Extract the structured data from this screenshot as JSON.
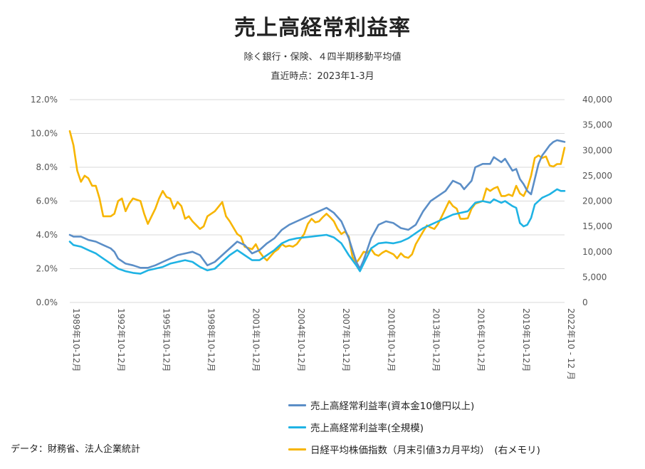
{
  "chart_data": {
    "type": "line",
    "title": "売上高経常利益率",
    "subtitle": "除く銀行・保険、４四半期移動平均値",
    "subtitle2": "直近時点：2023年1-3月",
    "x_tick_labels": [
      "1989年10-12月",
      "1992年10-12月",
      "1995年10-12月",
      "1998年10-12月",
      "2001年10-12月",
      "2004年10-12月",
      "2007年10-12月",
      "2010年10-12月",
      "2013年10-12月",
      "2016年10-12月",
      "2019年10-12月",
      "2022年10 - 12 月"
    ],
    "x_start": 1989.75,
    "x_end": 2023.0,
    "y_left": {
      "ticks": [
        "0.0%",
        "2.0%",
        "4.0%",
        "6.0%",
        "8.0%",
        "10.0%",
        "12.0%"
      ],
      "ylim": [
        0,
        12
      ]
    },
    "y_right": {
      "ticks": [
        "0",
        "5,000",
        "10,000",
        "15,000",
        "20,000",
        "25,000",
        "30,000",
        "35,000",
        "40,000"
      ],
      "ylim": [
        0,
        40000
      ]
    },
    "grid": true,
    "legend_position": "bottom-right",
    "series": [
      {
        "name": "売上高経常利益率(資本金10億円以上)",
        "axis": "left",
        "color": "#5b8ec7",
        "points": [
          [
            1989.75,
            4.0
          ],
          [
            1990.0,
            3.9
          ],
          [
            1990.5,
            3.9
          ],
          [
            1991.0,
            3.7
          ],
          [
            1991.5,
            3.6
          ],
          [
            1992.0,
            3.4
          ],
          [
            1992.5,
            3.2
          ],
          [
            1992.75,
            3.0
          ],
          [
            1993.0,
            2.6
          ],
          [
            1993.5,
            2.3
          ],
          [
            1994.0,
            2.2
          ],
          [
            1994.5,
            2.05
          ],
          [
            1995.0,
            2.05
          ],
          [
            1995.5,
            2.2
          ],
          [
            1996.0,
            2.4
          ],
          [
            1996.5,
            2.6
          ],
          [
            1997.0,
            2.8
          ],
          [
            1997.5,
            2.9
          ],
          [
            1998.0,
            3.0
          ],
          [
            1998.5,
            2.8
          ],
          [
            1999.0,
            2.2
          ],
          [
            1999.5,
            2.4
          ],
          [
            2000.0,
            2.8
          ],
          [
            2000.5,
            3.2
          ],
          [
            2001.0,
            3.6
          ],
          [
            2001.5,
            3.4
          ],
          [
            2002.0,
            2.9
          ],
          [
            2002.5,
            3.1
          ],
          [
            2003.0,
            3.5
          ],
          [
            2003.5,
            3.8
          ],
          [
            2004.0,
            4.3
          ],
          [
            2004.5,
            4.6
          ],
          [
            2005.0,
            4.8
          ],
          [
            2005.5,
            5.0
          ],
          [
            2006.0,
            5.2
          ],
          [
            2006.5,
            5.4
          ],
          [
            2007.0,
            5.6
          ],
          [
            2007.5,
            5.3
          ],
          [
            2008.0,
            4.8
          ],
          [
            2008.5,
            3.8
          ],
          [
            2009.0,
            2.4
          ],
          [
            2009.25,
            2.0
          ],
          [
            2009.5,
            2.5
          ],
          [
            2010.0,
            3.8
          ],
          [
            2010.5,
            4.6
          ],
          [
            2011.0,
            4.8
          ],
          [
            2011.5,
            4.7
          ],
          [
            2012.0,
            4.4
          ],
          [
            2012.5,
            4.3
          ],
          [
            2013.0,
            4.6
          ],
          [
            2013.5,
            5.4
          ],
          [
            2014.0,
            6.0
          ],
          [
            2014.5,
            6.3
          ],
          [
            2015.0,
            6.6
          ],
          [
            2015.5,
            7.2
          ],
          [
            2016.0,
            7.0
          ],
          [
            2016.25,
            6.7
          ],
          [
            2016.75,
            7.2
          ],
          [
            2017.0,
            8.0
          ],
          [
            2017.5,
            8.2
          ],
          [
            2018.0,
            8.2
          ],
          [
            2018.25,
            8.6
          ],
          [
            2018.75,
            8.3
          ],
          [
            2019.0,
            8.5
          ],
          [
            2019.5,
            7.8
          ],
          [
            2019.75,
            7.9
          ],
          [
            2020.0,
            7.3
          ],
          [
            2020.25,
            7.0
          ],
          [
            2020.5,
            6.6
          ],
          [
            2020.75,
            6.4
          ],
          [
            2021.0,
            7.3
          ],
          [
            2021.25,
            8.2
          ],
          [
            2021.5,
            8.7
          ],
          [
            2021.75,
            9.0
          ],
          [
            2022.0,
            9.3
          ],
          [
            2022.25,
            9.5
          ],
          [
            2022.5,
            9.6
          ],
          [
            2022.75,
            9.55
          ],
          [
            2023.0,
            9.5
          ]
        ]
      },
      {
        "name": "売上高経常利益率(全規模)",
        "axis": "left",
        "color": "#1fb3e4",
        "points": [
          [
            1989.75,
            3.6
          ],
          [
            1990.0,
            3.4
          ],
          [
            1990.5,
            3.3
          ],
          [
            1991.0,
            3.1
          ],
          [
            1991.5,
            2.9
          ],
          [
            1992.0,
            2.6
          ],
          [
            1992.5,
            2.3
          ],
          [
            1993.0,
            2.0
          ],
          [
            1993.5,
            1.85
          ],
          [
            1994.0,
            1.75
          ],
          [
            1994.5,
            1.7
          ],
          [
            1995.0,
            1.9
          ],
          [
            1995.5,
            2.0
          ],
          [
            1996.0,
            2.1
          ],
          [
            1996.5,
            2.3
          ],
          [
            1997.0,
            2.4
          ],
          [
            1997.5,
            2.5
          ],
          [
            1998.0,
            2.4
          ],
          [
            1998.5,
            2.1
          ],
          [
            1999.0,
            1.9
          ],
          [
            1999.5,
            2.0
          ],
          [
            2000.0,
            2.4
          ],
          [
            2000.5,
            2.8
          ],
          [
            2001.0,
            3.1
          ],
          [
            2001.5,
            2.8
          ],
          [
            2002.0,
            2.5
          ],
          [
            2002.5,
            2.5
          ],
          [
            2003.0,
            2.8
          ],
          [
            2003.5,
            3.1
          ],
          [
            2004.0,
            3.5
          ],
          [
            2004.5,
            3.7
          ],
          [
            2005.0,
            3.8
          ],
          [
            2005.5,
            3.85
          ],
          [
            2006.0,
            3.9
          ],
          [
            2006.5,
            3.95
          ],
          [
            2007.0,
            4.0
          ],
          [
            2007.5,
            3.85
          ],
          [
            2008.0,
            3.5
          ],
          [
            2008.5,
            2.8
          ],
          [
            2009.0,
            2.2
          ],
          [
            2009.25,
            1.85
          ],
          [
            2009.5,
            2.3
          ],
          [
            2010.0,
            3.2
          ],
          [
            2010.5,
            3.5
          ],
          [
            2011.0,
            3.55
          ],
          [
            2011.5,
            3.5
          ],
          [
            2012.0,
            3.6
          ],
          [
            2012.5,
            3.8
          ],
          [
            2013.0,
            4.1
          ],
          [
            2013.5,
            4.4
          ],
          [
            2014.0,
            4.6
          ],
          [
            2014.5,
            4.8
          ],
          [
            2015.0,
            5.0
          ],
          [
            2015.5,
            5.2
          ],
          [
            2016.0,
            5.3
          ],
          [
            2016.5,
            5.4
          ],
          [
            2017.0,
            5.9
          ],
          [
            2017.5,
            6.0
          ],
          [
            2018.0,
            5.9
          ],
          [
            2018.25,
            6.1
          ],
          [
            2018.75,
            5.9
          ],
          [
            2019.0,
            6.0
          ],
          [
            2019.5,
            5.7
          ],
          [
            2019.75,
            5.6
          ],
          [
            2020.0,
            4.7
          ],
          [
            2020.25,
            4.5
          ],
          [
            2020.5,
            4.6
          ],
          [
            2020.75,
            5.0
          ],
          [
            2021.0,
            5.8
          ],
          [
            2021.5,
            6.2
          ],
          [
            2022.0,
            6.4
          ],
          [
            2022.5,
            6.7
          ],
          [
            2022.75,
            6.6
          ],
          [
            2023.0,
            6.6
          ]
        ]
      },
      {
        "name": "日経平均株価指数（月末引値3カ月平均）　(右メモリ)",
        "axis": "right",
        "color": "#f7b500",
        "points": [
          [
            1989.75,
            33800
          ],
          [
            1990.0,
            31000
          ],
          [
            1990.25,
            26000
          ],
          [
            1990.5,
            23800
          ],
          [
            1990.75,
            25000
          ],
          [
            1991.0,
            24500
          ],
          [
            1991.25,
            23000
          ],
          [
            1991.5,
            23000
          ],
          [
            1991.75,
            20500
          ],
          [
            1992.0,
            17000
          ],
          [
            1992.5,
            17000
          ],
          [
            1992.75,
            17500
          ],
          [
            1993.0,
            20000
          ],
          [
            1993.25,
            20500
          ],
          [
            1993.5,
            18000
          ],
          [
            1993.75,
            19500
          ],
          [
            1994.0,
            20500
          ],
          [
            1994.5,
            20000
          ],
          [
            1994.75,
            17500
          ],
          [
            1995.0,
            15500
          ],
          [
            1995.5,
            18500
          ],
          [
            1995.75,
            20500
          ],
          [
            1996.0,
            22000
          ],
          [
            1996.25,
            20800
          ],
          [
            1996.5,
            20500
          ],
          [
            1996.75,
            18500
          ],
          [
            1997.0,
            19800
          ],
          [
            1997.25,
            19000
          ],
          [
            1997.5,
            16500
          ],
          [
            1997.75,
            17000
          ],
          [
            1998.0,
            16000
          ],
          [
            1998.5,
            14500
          ],
          [
            1998.75,
            15000
          ],
          [
            1999.0,
            17000
          ],
          [
            1999.5,
            18000
          ],
          [
            2000.0,
            19800
          ],
          [
            2000.25,
            17000
          ],
          [
            2000.5,
            16000
          ],
          [
            2001.0,
            13500
          ],
          [
            2001.25,
            13000
          ],
          [
            2001.5,
            11000
          ],
          [
            2002.0,
            10500
          ],
          [
            2002.25,
            11500
          ],
          [
            2002.5,
            10000
          ],
          [
            2002.75,
            9000
          ],
          [
            2003.0,
            8300
          ],
          [
            2003.5,
            10000
          ],
          [
            2003.75,
            10500
          ],
          [
            2004.0,
            11500
          ],
          [
            2004.25,
            11000
          ],
          [
            2004.5,
            11200
          ],
          [
            2004.75,
            11000
          ],
          [
            2005.0,
            11500
          ],
          [
            2005.5,
            13500
          ],
          [
            2005.75,
            15500
          ],
          [
            2006.0,
            16500
          ],
          [
            2006.25,
            15800
          ],
          [
            2006.5,
            16000
          ],
          [
            2006.75,
            16800
          ],
          [
            2007.0,
            17500
          ],
          [
            2007.25,
            16800
          ],
          [
            2007.5,
            16000
          ],
          [
            2007.75,
            14500
          ],
          [
            2008.0,
            13500
          ],
          [
            2008.25,
            14000
          ],
          [
            2008.5,
            13000
          ],
          [
            2008.75,
            9000
          ],
          [
            2009.0,
            7800
          ],
          [
            2009.25,
            8800
          ],
          [
            2009.5,
            10000
          ],
          [
            2009.75,
            9800
          ],
          [
            2010.0,
            10500
          ],
          [
            2010.25,
            9500
          ],
          [
            2010.5,
            9200
          ],
          [
            2010.75,
            9800
          ],
          [
            2011.0,
            10200
          ],
          [
            2011.5,
            9500
          ],
          [
            2011.75,
            8700
          ],
          [
            2012.0,
            9700
          ],
          [
            2012.25,
            9000
          ],
          [
            2012.5,
            8800
          ],
          [
            2012.75,
            9500
          ],
          [
            2013.0,
            11500
          ],
          [
            2013.5,
            14000
          ],
          [
            2013.75,
            15200
          ],
          [
            2014.0,
            14800
          ],
          [
            2014.25,
            14500
          ],
          [
            2014.5,
            15500
          ],
          [
            2014.75,
            17000
          ],
          [
            2015.0,
            18500
          ],
          [
            2015.25,
            20000
          ],
          [
            2015.5,
            19000
          ],
          [
            2015.75,
            18500
          ],
          [
            2016.0,
            16500
          ],
          [
            2016.25,
            16500
          ],
          [
            2016.5,
            16600
          ],
          [
            2016.75,
            18500
          ],
          [
            2017.0,
            19500
          ],
          [
            2017.5,
            20000
          ],
          [
            2017.75,
            22500
          ],
          [
            2018.0,
            22000
          ],
          [
            2018.25,
            22500
          ],
          [
            2018.5,
            22800
          ],
          [
            2018.75,
            21000
          ],
          [
            2019.0,
            21000
          ],
          [
            2019.25,
            21300
          ],
          [
            2019.5,
            21000
          ],
          [
            2019.75,
            23000
          ],
          [
            2020.0,
            21500
          ],
          [
            2020.25,
            21000
          ],
          [
            2020.5,
            22500
          ],
          [
            2020.75,
            25000
          ],
          [
            2021.0,
            28500
          ],
          [
            2021.25,
            29000
          ],
          [
            2021.5,
            28500
          ],
          [
            2021.75,
            28800
          ],
          [
            2022.0,
            27000
          ],
          [
            2022.25,
            26800
          ],
          [
            2022.5,
            27300
          ],
          [
            2022.75,
            27300
          ],
          [
            2023.0,
            30500
          ]
        ]
      }
    ],
    "source": "データ：財務省、法人企業統計"
  }
}
